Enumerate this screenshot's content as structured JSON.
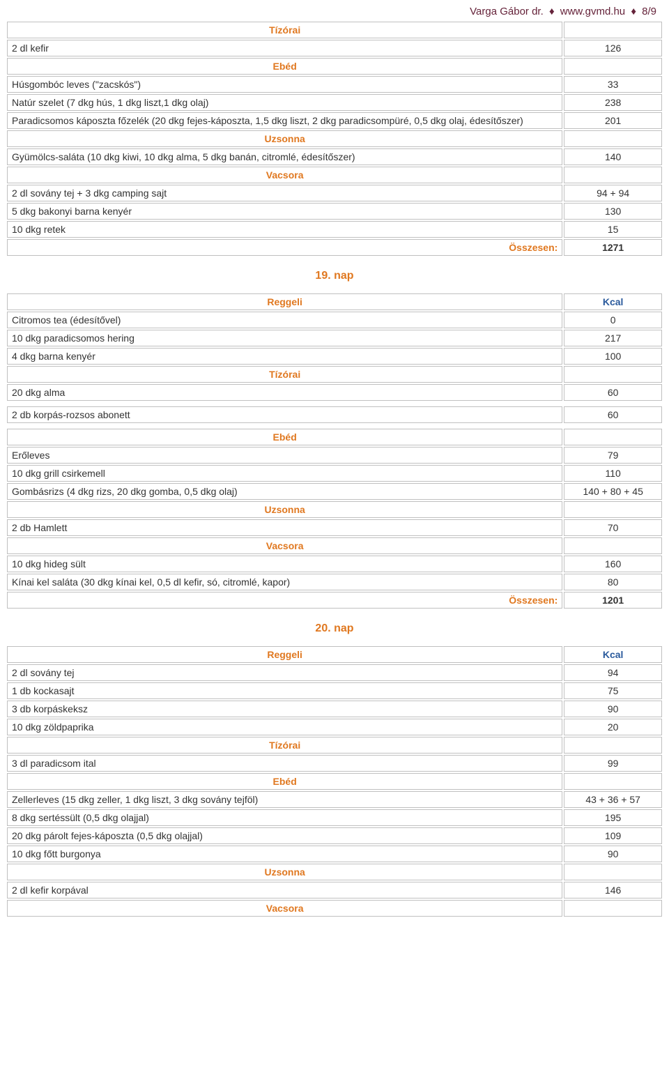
{
  "header": {
    "author": "Varga Gábor dr.",
    "site": "www.gvmd.hu",
    "page": "8/9"
  },
  "labels": {
    "tizorai": "Tízórai",
    "ebed": "Ebéd",
    "uzsonna": "Uzsonna",
    "vacsora": "Vacsora",
    "reggeli": "Reggeli",
    "kcal": "Kcal",
    "osszesen": "Összesen:"
  },
  "day18": {
    "tizorai": [
      {
        "name": "2 dl kefir",
        "val": "126"
      }
    ],
    "ebed": [
      {
        "name": "Húsgombóc leves (\"zacskós\")",
        "val": "33"
      },
      {
        "name": "Natúr szelet (7 dkg hús, 1 dkg liszt,1 dkg olaj)",
        "val": "238"
      },
      {
        "name": "Paradicsomos káposzta főzelék (20 dkg fejes-káposzta, 1,5 dkg liszt, 2 dkg paradicsompüré, 0,5 dkg olaj, édesítőszer)",
        "val": "201"
      }
    ],
    "uzsonna": [
      {
        "name": "Gyümölcs-saláta (10 dkg kiwi, 10 dkg alma, 5 dkg banán, citromlé, édesítőszer)",
        "val": "140"
      }
    ],
    "vacsora": [
      {
        "name": "2 dl sovány tej + 3 dkg camping sajt",
        "val": "94 + 94"
      },
      {
        "name": "5 dkg bakonyi barna kenyér",
        "val": "130"
      },
      {
        "name": "10 dkg retek",
        "val": "15"
      }
    ],
    "total": "1271"
  },
  "day19": {
    "title": "19. nap",
    "reggeli": [
      {
        "name": "Citromos tea (édesítővel)",
        "val": "0"
      },
      {
        "name": "10 dkg paradicsomos hering",
        "val": "217"
      },
      {
        "name": "4 dkg barna kenyér",
        "val": "100"
      }
    ],
    "tizorai": [
      {
        "name": "20 dkg alma",
        "val": "60"
      }
    ],
    "tizorai_standalone": [
      {
        "name": "2 db korpás-rozsos abonett",
        "val": "60"
      }
    ],
    "ebed": [
      {
        "name": "Erőleves",
        "val": "79"
      },
      {
        "name": "10 dkg grill csirkemell",
        "val": "110"
      },
      {
        "name": "Gombásrizs (4 dkg rizs, 20 dkg gomba, 0,5 dkg olaj)",
        "val": "140 + 80 + 45"
      }
    ],
    "uzsonna": [
      {
        "name": "2 db Hamlett",
        "val": "70"
      }
    ],
    "vacsora": [
      {
        "name": "10 dkg hideg sült",
        "val": "160"
      },
      {
        "name": "Kínai kel saláta (30 dkg kínai kel, 0,5 dl kefir, só, citromlé, kapor)",
        "val": "80"
      }
    ],
    "total": "1201"
  },
  "day20": {
    "title": "20. nap",
    "reggeli": [
      {
        "name": "2 dl sovány tej",
        "val": "94"
      },
      {
        "name": "1 db kockasajt",
        "val": "75"
      },
      {
        "name": "3 db korpáskeksz",
        "val": "90"
      },
      {
        "name": "10 dkg zöldpaprika",
        "val": "20"
      }
    ],
    "tizorai": [
      {
        "name": "3 dl paradicsom ital",
        "val": "99"
      }
    ],
    "ebed": [
      {
        "name": "Zellerleves (15 dkg zeller, 1 dkg liszt, 3 dkg sovány tejföl)",
        "val": "43 + 36 + 57"
      },
      {
        "name": "8 dkg sertéssült (0,5 dkg olajjal)",
        "val": "195"
      },
      {
        "name": "20 dkg párolt fejes-káposzta (0,5 dkg olajjal)",
        "val": "109"
      },
      {
        "name": "10 dkg főtt burgonya",
        "val": "90"
      }
    ],
    "uzsonna": [
      {
        "name": "2 dl kefir korpával",
        "val": "146"
      }
    ]
  }
}
